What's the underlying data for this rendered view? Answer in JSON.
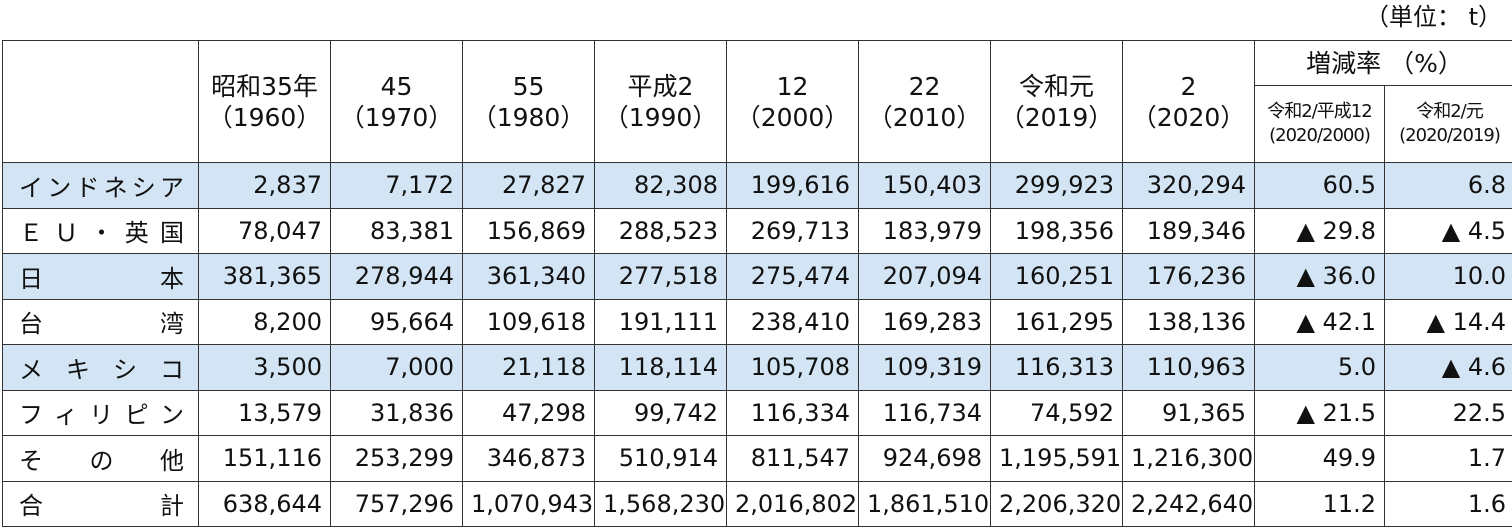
{
  "unit": "（単位： t）",
  "table": {
    "year_headers": [
      [
        "昭和35年",
        "（1960）"
      ],
      [
        "45",
        "（1970）"
      ],
      [
        "55",
        "（1980）"
      ],
      [
        "平成2",
        "（1990）"
      ],
      [
        "12",
        "（2000）"
      ],
      [
        "22",
        "（2010）"
      ],
      [
        "令和元",
        "（2019）"
      ],
      [
        "2",
        "（2020）"
      ]
    ],
    "rate_header": "増減率 （%）",
    "rate_subheaders": [
      [
        "令和2/平成12",
        "(2020/2000)"
      ],
      [
        "令和2/元",
        "(2020/2019)"
      ]
    ],
    "rows": [
      [
        "インドネシア",
        "2,837",
        "7,172",
        "27,827",
        "82,308",
        "199,616",
        "150,403",
        "299,923",
        "320,294",
        "60.5",
        "6.8"
      ],
      [
        "ＥＵ・英国",
        "78,047",
        "83,381",
        "156,869",
        "288,523",
        "269,713",
        "183,979",
        "198,356",
        "189,346",
        "▲ 29.8",
        "▲ 4.5"
      ],
      [
        "日本",
        "381,365",
        "278,944",
        "361,340",
        "277,518",
        "275,474",
        "207,094",
        "160,251",
        "176,236",
        "▲ 36.0",
        "10.0"
      ],
      [
        "台湾",
        "8,200",
        "95,664",
        "109,618",
        "191,111",
        "238,410",
        "169,283",
        "161,295",
        "138,136",
        "▲ 42.1",
        "▲ 14.4"
      ],
      [
        "メキシコ",
        "3,500",
        "7,000",
        "21,118",
        "118,114",
        "105,708",
        "109,319",
        "116,313",
        "110,963",
        "5.0",
        "▲ 4.6"
      ],
      [
        "フィリピン",
        "13,579",
        "31,836",
        "47,298",
        "99,742",
        "116,334",
        "116,734",
        "74,592",
        "91,365",
        "▲ 21.5",
        "22.5"
      ],
      [
        "その他",
        "151,116",
        "253,299",
        "346,873",
        "510,914",
        "811,547",
        "924,698",
        "1,195,591",
        "1,216,300",
        "49.9",
        "1.7"
      ],
      [
        "合計",
        "638,644",
        "757,296",
        "1,070,943",
        "1,568,230",
        "2,016,802",
        "1,861,510",
        "2,206,320",
        "2,242,640",
        "11.2",
        "1.6"
      ]
    ],
    "shaded_rows": [
      0,
      2,
      4
    ]
  }
}
